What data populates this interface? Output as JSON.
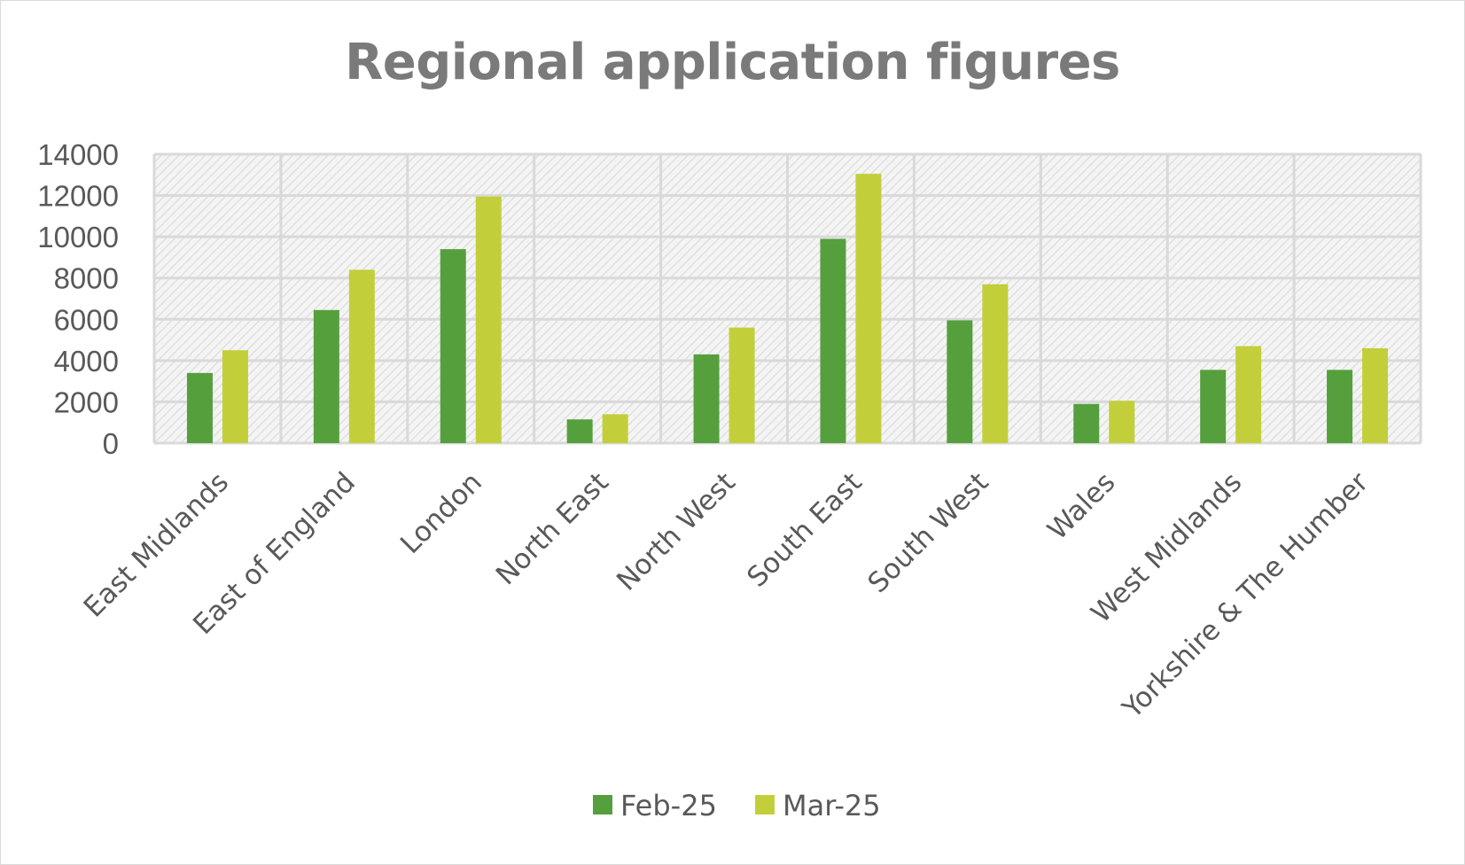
{
  "chart_data": {
    "type": "bar",
    "title": "Regional application figures",
    "xlabel": "",
    "ylabel": "",
    "ylim": [
      0,
      14000
    ],
    "yticks": [
      0,
      2000,
      4000,
      6000,
      8000,
      10000,
      12000,
      14000
    ],
    "categories": [
      "East Midlands",
      "East of England",
      "London",
      "North East",
      "North West",
      "South East",
      "South West",
      "Wales",
      "West Midlands",
      "Yorkshire & The Humber"
    ],
    "series": [
      {
        "name": "Feb-25",
        "color": "#55a03c",
        "values": [
          3400,
          6450,
          9400,
          1150,
          4300,
          9900,
          5950,
          1900,
          3550,
          3550
        ]
      },
      {
        "name": "Mar-25",
        "color": "#c2cf3a",
        "values": [
          4500,
          8400,
          11950,
          1400,
          5600,
          13050,
          7700,
          2050,
          4700,
          4600
        ]
      }
    ],
    "grid": true,
    "legend_position": "bottom"
  }
}
